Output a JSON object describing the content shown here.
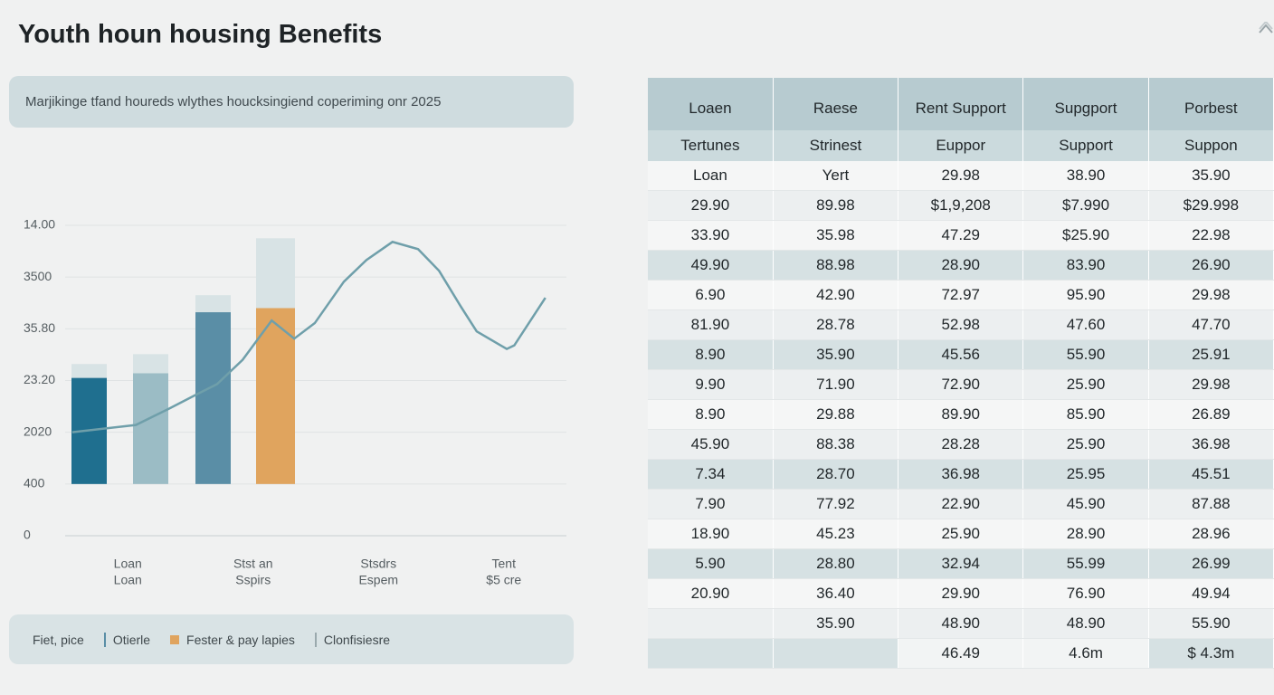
{
  "header": {
    "title": "Youth houn housing Benefits",
    "subtitle": "Marjikinge tfand houreds wlythes houcksingiend coperiming onr 2025"
  },
  "chart_data": {
    "type": "bar",
    "categories": [
      [
        "Loan",
        "Loan"
      ],
      [
        "Stst an",
        "Sspirs"
      ],
      [
        "Stsdrs",
        "Espem"
      ],
      [
        "Tent",
        "$5 cre"
      ]
    ],
    "series": [
      {
        "values": [
          2.05,
          2.14,
          3.32,
          3.4
        ],
        "colors": [
          "#1f6f8f",
          "#9bbcc5",
          "#5a8ea6",
          "#e0a45e"
        ]
      },
      {
        "values": [
          0.27,
          0.37,
          0.33,
          1.35
        ],
        "color": "#d8e3e5"
      }
    ],
    "line": {
      "x": [
        0.14,
        1.41,
        2.08,
        2.6,
        3.03,
        3.54,
        4.12,
        4.57,
        4.98,
        5.56,
        6.01,
        6.53,
        7.04,
        7.46,
        7.9,
        8.21,
        8.81,
        8.96,
        9.58
      ],
      "values": [
        2.0,
        2.14,
        2.46,
        2.72,
        2.93,
        3.4,
        4.16,
        3.81,
        4.11,
        4.91,
        5.33,
        5.68,
        5.54,
        5.12,
        4.42,
        3.95,
        3.61,
        3.68,
        4.6
      ],
      "color": "#6f9faa"
    },
    "xlim": [
      0,
      10
    ],
    "ylim": [
      0,
      6
    ],
    "yticks": [
      0,
      {
        "value": 1,
        "label": "400"
      },
      {
        "value": 2,
        "label": "2020"
      },
      {
        "value": 3,
        "label": "23.20"
      },
      {
        "value": 4,
        "label": "35.80"
      },
      {
        "value": 5,
        "label": "3500"
      },
      {
        "value": 6,
        "label": "14.00"
      }
    ],
    "grid": true
  },
  "legend": [
    "Fiet, pice",
    "Otierle",
    "Fester & pay lapies",
    "Clonfisiesre"
  ],
  "legend_colors": [
    null,
    "#5a8ea6",
    "#e0a45e",
    "#9aa9ad"
  ],
  "table": {
    "header": [
      [
        "Loaen",
        "Raese",
        "Rent Support",
        "Supgport",
        "Porbest"
      ],
      [
        "Tertunes",
        "Strinest",
        "Euppor",
        "Support",
        "Suppon"
      ]
    ],
    "rows": [
      [
        "Loan",
        "Yert",
        "29.98",
        "38.90",
        "35.90"
      ],
      [
        "29.90",
        "89.98",
        "$1,9,208",
        "$7.990",
        "$29.998"
      ],
      [
        "33.90",
        "35.98",
        "47.29",
        "$25.90",
        "22.98"
      ],
      [
        "49.90",
        "88.98",
        "28.90",
        "83.90",
        "26.90"
      ],
      [
        "6.90",
        "42.90",
        "72.97",
        "95.90",
        "29.98"
      ],
      [
        "81.90",
        "28.78",
        "52.98",
        "47.60",
        "47.70"
      ],
      [
        "8.90",
        "35.90",
        "45.56",
        "55.90",
        "25.91"
      ],
      [
        "9.90",
        "71.90",
        "72.90",
        "25.90",
        "29.98"
      ],
      [
        "8.90",
        "29.88",
        "89.90",
        "85.90",
        "26.89"
      ],
      [
        "45.90",
        "88.38",
        "28.28",
        "25.90",
        "36.98"
      ],
      [
        "7.34",
        "28.70",
        "36.98",
        "25.95",
        "45.51"
      ],
      [
        "7.90",
        "77.92",
        "22.90",
        "45.90",
        "87.88"
      ],
      [
        "18.90",
        "45.23",
        "25.90",
        "28.90",
        "28.96"
      ],
      [
        "5.90",
        "28.80",
        "32.94",
        "55.99",
        "26.99"
      ],
      [
        "20.90",
        "36.40",
        "29.90",
        "76.90",
        "49.94"
      ],
      [
        null,
        "35.90",
        "48.90",
        "48.90",
        "55.90"
      ],
      [
        null,
        null,
        "46.49",
        "4.6m",
        "$ 4.3m"
      ]
    ]
  }
}
